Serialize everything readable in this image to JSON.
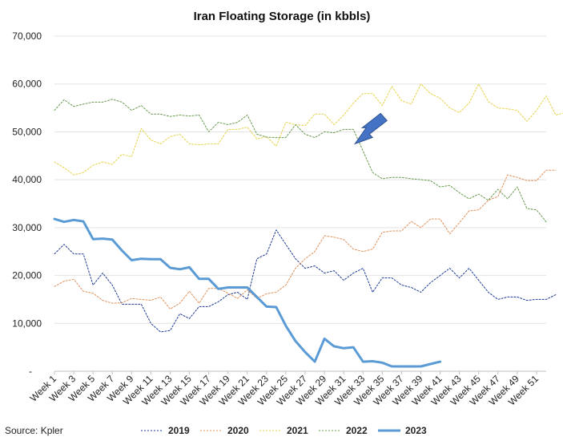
{
  "chart_data": {
    "type": "line",
    "title": "Iran Floating Storage (in kbbls)",
    "source": "Source: Kpler",
    "xlabel": "",
    "ylabel": "",
    "ylim": [
      0,
      70000
    ],
    "yticks": [
      "-",
      "10,000",
      "20,000",
      "30,000",
      "40,000",
      "50,000",
      "60,000",
      "70,000"
    ],
    "ytick_values": [
      0,
      10000,
      20000,
      30000,
      40000,
      50000,
      60000,
      70000
    ],
    "grid": true,
    "legend_position": "bottom",
    "x_tick_labels": [
      "Week 1",
      "Week 3",
      "Week 5",
      "Week 7",
      "Week 9",
      "Week 11",
      "Week 13",
      "Week 15",
      "Week 17",
      "Week 19",
      "Week 21",
      "Week 23",
      "Week 25",
      "Week 27",
      "Week 29",
      "Week 31",
      "Week 33",
      "Week 35",
      "Week 37",
      "Week 39",
      "Week 41",
      "Week 43",
      "Week 45",
      "Week 47",
      "Week 49",
      "Week 51"
    ],
    "x_tick_weeks": [
      1,
      3,
      5,
      7,
      9,
      11,
      13,
      15,
      17,
      19,
      21,
      23,
      25,
      27,
      29,
      31,
      33,
      35,
      37,
      39,
      41,
      43,
      45,
      47,
      49,
      51
    ],
    "annotation": {
      "name": "arrow",
      "points_to_week": 32,
      "points_to_value": 47500,
      "color": "#4472c4"
    },
    "series": [
      {
        "name": "2019",
        "color": "#1f3a93",
        "style": "dotted",
        "width": 1,
        "values": [
          24500,
          26500,
          24500,
          24500,
          18000,
          20500,
          18000,
          14000,
          14000,
          14000,
          10000,
          8200,
          8500,
          12000,
          11000,
          13500,
          13500,
          14500,
          16000,
          16500,
          15000,
          23500,
          24500,
          29500,
          26500,
          23500,
          21500,
          22000,
          20500,
          21000,
          19000,
          20500,
          21500,
          16500,
          19500,
          19500,
          18000,
          17500,
          16500,
          18500,
          20000,
          21500,
          19500,
          21500,
          19000,
          16500,
          15000,
          15500,
          15500,
          14800,
          15000,
          15000,
          16000
        ]
      },
      {
        "name": "2020",
        "color": "#e0915a",
        "style": "dotted",
        "width": 1,
        "values": [
          17700,
          18800,
          19200,
          16700,
          16300,
          14800,
          14200,
          14300,
          15200,
          15000,
          14800,
          15500,
          13000,
          14200,
          16700,
          14200,
          17300,
          17300,
          16300,
          15200,
          17000,
          15200,
          16200,
          16500,
          18000,
          21500,
          23500,
          25000,
          28300,
          28000,
          27500,
          25500,
          25000,
          25500,
          29000,
          29300,
          29300,
          31300,
          30000,
          31800,
          31800,
          28700,
          31000,
          33500,
          33700,
          35700,
          36500,
          41000,
          40500,
          39800,
          39800,
          42000,
          42000
        ]
      },
      {
        "name": "2021",
        "color": "#e5d34a",
        "style": "dotted",
        "width": 1,
        "values": [
          43700,
          42500,
          41000,
          41500,
          43000,
          43700,
          43200,
          45300,
          44800,
          50700,
          48300,
          47500,
          49000,
          49500,
          47500,
          47300,
          47500,
          47500,
          50500,
          50500,
          51000,
          48500,
          49000,
          47000,
          52000,
          51500,
          51300,
          53700,
          53700,
          51500,
          53500,
          56000,
          58000,
          58000,
          55500,
          59500,
          56500,
          55800,
          60000,
          58000,
          57000,
          55000,
          54000,
          56000,
          60000,
          56300,
          55000,
          54800,
          54500,
          52200,
          54500,
          57500,
          53500,
          54000
        ]
      },
      {
        "name": "2022",
        "color": "#6b9a4f",
        "style": "dotted",
        "width": 1,
        "values": [
          54500,
          56700,
          55300,
          55800,
          56200,
          56200,
          56800,
          56200,
          54500,
          55500,
          53700,
          53700,
          53200,
          53500,
          53300,
          53500,
          50000,
          52000,
          51500,
          52000,
          53500,
          49500,
          48900,
          48800,
          48800,
          51500,
          49500,
          48800,
          50000,
          49800,
          50500,
          50500,
          46000,
          41500,
          40200,
          40500,
          40500,
          40200,
          40000,
          39800,
          38500,
          38800,
          37300,
          36000,
          37000,
          35700,
          38000,
          36000,
          38500,
          34000,
          33700,
          31200
        ]
      },
      {
        "name": "2023",
        "color": "#5b9bd5",
        "style": "solid",
        "width": 3,
        "values": [
          31800,
          31200,
          31600,
          31300,
          27600,
          27700,
          27500,
          25200,
          23200,
          23500,
          23400,
          23400,
          21600,
          21300,
          21700,
          19300,
          19300,
          17200,
          17500,
          17500,
          17500,
          15500,
          13500,
          13400,
          9500,
          6300,
          4000,
          2000,
          6800,
          5200,
          4800,
          5000,
          2000,
          2100,
          1800,
          1000,
          1000,
          1000,
          1000,
          1500,
          2000
        ]
      }
    ]
  }
}
